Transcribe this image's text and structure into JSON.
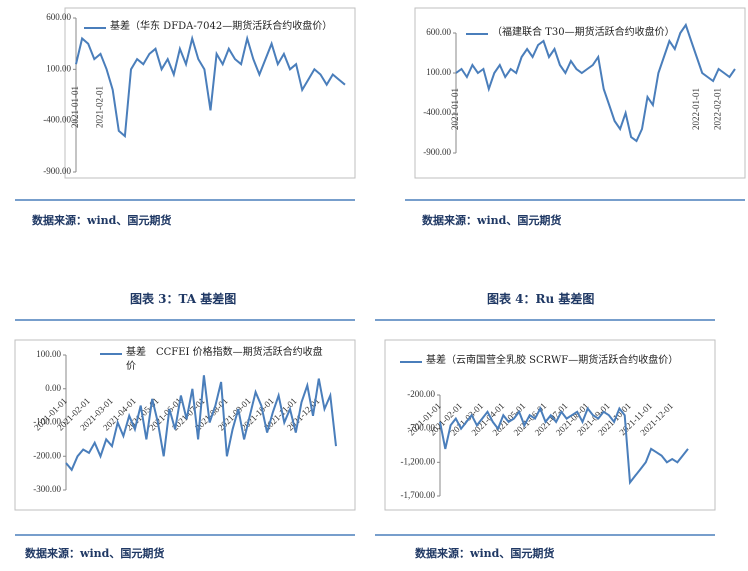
{
  "chart_data": [
    {
      "type": "line",
      "categories": [
        "2021-01-01",
        null,
        null,
        null,
        "2021-02-01",
        null,
        null,
        null,
        null,
        null,
        null,
        null,
        null,
        null,
        null,
        null,
        null,
        null,
        null,
        null,
        null,
        null,
        null,
        null,
        null,
        null,
        null,
        null,
        null,
        null,
        null,
        null,
        null,
        null,
        null,
        null,
        null,
        null,
        null,
        null,
        null,
        null,
        null,
        null,
        null
      ],
      "series": [
        {
          "name": "基差（华东 DFDA-7042—期货活跃合约收盘价）",
          "color": "#4a7ebb",
          "values": [
            150,
            400,
            350,
            200,
            250,
            100,
            -100,
            -500,
            -550,
            100,
            200,
            150,
            250,
            300,
            100,
            200,
            50,
            300,
            150,
            400,
            200,
            100,
            -300,
            250,
            150,
            300,
            200,
            150,
            400,
            200,
            50,
            200,
            350,
            150,
            250,
            100,
            150,
            -100,
            0,
            100,
            50,
            -50,
            50,
            0,
            -50
          ]
        }
      ],
      "ylim": [
        -900,
        600
      ],
      "yticks": [
        {
          "value": 600,
          "label": "600.00"
        },
        {
          "value": 100,
          "label": "100.00"
        },
        {
          "value": -400,
          "label": "-400.00"
        },
        {
          "value": -900,
          "label": "-900.00"
        }
      ]
    },
    {
      "type": "line",
      "categories": [
        "2021-01-01",
        null,
        null,
        null,
        null,
        null,
        null,
        null,
        null,
        null,
        null,
        null,
        null,
        null,
        null,
        null,
        null,
        null,
        null,
        null,
        null,
        null,
        null,
        null,
        null,
        null,
        null,
        null,
        null,
        null,
        null,
        null,
        null,
        null,
        null,
        null,
        null,
        null,
        null,
        null,
        null,
        null,
        null,
        null,
        "2022-01-01",
        null,
        null,
        null,
        "2022-02-01",
        null,
        null,
        null
      ],
      "series": [
        {
          "name": "（福建联合 T30—期货活跃合约收盘价）",
          "color": "#4a7ebb",
          "values": [
            100,
            150,
            50,
            200,
            100,
            150,
            -100,
            100,
            200,
            50,
            150,
            100,
            300,
            400,
            300,
            450,
            500,
            300,
            400,
            200,
            100,
            250,
            150,
            100,
            150,
            200,
            300,
            -100,
            -300,
            -500,
            -600,
            -400,
            -700,
            -750,
            -600,
            -200,
            -300,
            100,
            300,
            500,
            400,
            600,
            700,
            500,
            300,
            100,
            50,
            0,
            150,
            100,
            50,
            150
          ]
        }
      ],
      "ylim": [
        -900,
        600
      ],
      "yticks": [
        {
          "value": 600,
          "label": "600.00"
        },
        {
          "value": 100,
          "label": "100.00"
        },
        {
          "value": -400,
          "label": "-400.00"
        },
        {
          "value": -900,
          "label": "-900.00"
        }
      ]
    },
    {
      "type": "line",
      "categories": [
        "2021-01-01",
        null,
        null,
        null,
        "2021-02-01",
        null,
        null,
        null,
        "2021-03-01",
        null,
        null,
        null,
        "2021-04-01",
        null,
        null,
        null,
        "2021-05-01",
        null,
        null,
        null,
        "2021-06-01",
        null,
        null,
        null,
        "2021-07-01",
        null,
        null,
        null,
        "2021-08-01",
        null,
        null,
        null,
        "2021-09-01",
        null,
        null,
        null,
        "2021-10-01",
        null,
        null,
        null,
        "2021-11-01",
        null,
        null,
        null,
        "2021-12-01",
        null,
        null,
        null
      ],
      "series": [
        {
          "name": "基差　CCFEI 价格指数—期货活跃合约收盘价",
          "color": "#4a7ebb",
          "values": [
            -220,
            -240,
            -200,
            -180,
            -190,
            -160,
            -200,
            -150,
            -170,
            -100,
            -140,
            -80,
            -120,
            -50,
            -150,
            -30,
            -100,
            -200,
            -60,
            -120,
            -20,
            -90,
            0,
            -150,
            40,
            -100,
            -50,
            20,
            -200,
            -120,
            -60,
            -150,
            -80,
            -10,
            -50,
            -130,
            -70,
            -20,
            -100,
            -60,
            -130,
            -40,
            10,
            -80,
            30,
            -60,
            -20,
            -170
          ]
        }
      ],
      "ylim": [
        -300,
        100
      ],
      "yticks": [
        {
          "value": 100,
          "label": "100.00"
        },
        {
          "value": 0,
          "label": "0.00"
        },
        {
          "value": -100,
          "label": "-100.00"
        },
        {
          "value": -200,
          "label": "-200.00"
        },
        {
          "value": -300,
          "label": "-300.00"
        }
      ]
    },
    {
      "type": "line",
      "categories": [
        "2021-01-01",
        null,
        null,
        null,
        "2021-02-01",
        null,
        null,
        null,
        "2021-03-01",
        null,
        null,
        null,
        "2021-04-01",
        null,
        null,
        null,
        "2021-05-01",
        null,
        null,
        null,
        "2021-06-01",
        null,
        null,
        null,
        "2021-07-01",
        null,
        null,
        null,
        "2021-08-01",
        null,
        null,
        null,
        "2021-09-01",
        null,
        null,
        null,
        "2021-10-01",
        null,
        null,
        null,
        "2021-11-01",
        null,
        null,
        null,
        "2021-12-01",
        null,
        null,
        null
      ],
      "series": [
        {
          "name": "基差（云南国营全乳胶 SCRWF—期货活跃合约收盘价）",
          "color": "#4a7ebb",
          "values": [
            -600,
            -1000,
            -650,
            -550,
            -700,
            -600,
            -500,
            -650,
            -550,
            -450,
            -600,
            -700,
            -500,
            -600,
            -550,
            -450,
            -650,
            -500,
            -550,
            -400,
            -600,
            -500,
            -600,
            -450,
            -550,
            -500,
            -450,
            -600,
            -400,
            -500,
            -550,
            -450,
            -500,
            -600,
            -400,
            -500,
            -1500,
            -1400,
            -1300,
            -1200,
            -1000,
            -1050,
            -1100,
            -1200,
            -1150,
            -1200,
            -1100,
            -1000
          ]
        }
      ],
      "ylim": [
        -1700,
        -200
      ],
      "yticks": [
        {
          "value": -200,
          "label": "-200.00"
        },
        {
          "value": -700,
          "label": "-700.00"
        },
        {
          "value": -1200,
          "label": "-1,200.00"
        },
        {
          "value": -1700,
          "label": "-1,700.00"
        }
      ]
    }
  ],
  "document": {
    "sources": [
      "数据来源：wind、国元期货",
      "数据来源：wind、国元期货",
      "数据来源：wind、国元期货",
      "数据来源：wind、国元期货"
    ],
    "captions": [
      "图表 3：TA 基差图",
      "图表 4：Ru 基差图"
    ]
  }
}
